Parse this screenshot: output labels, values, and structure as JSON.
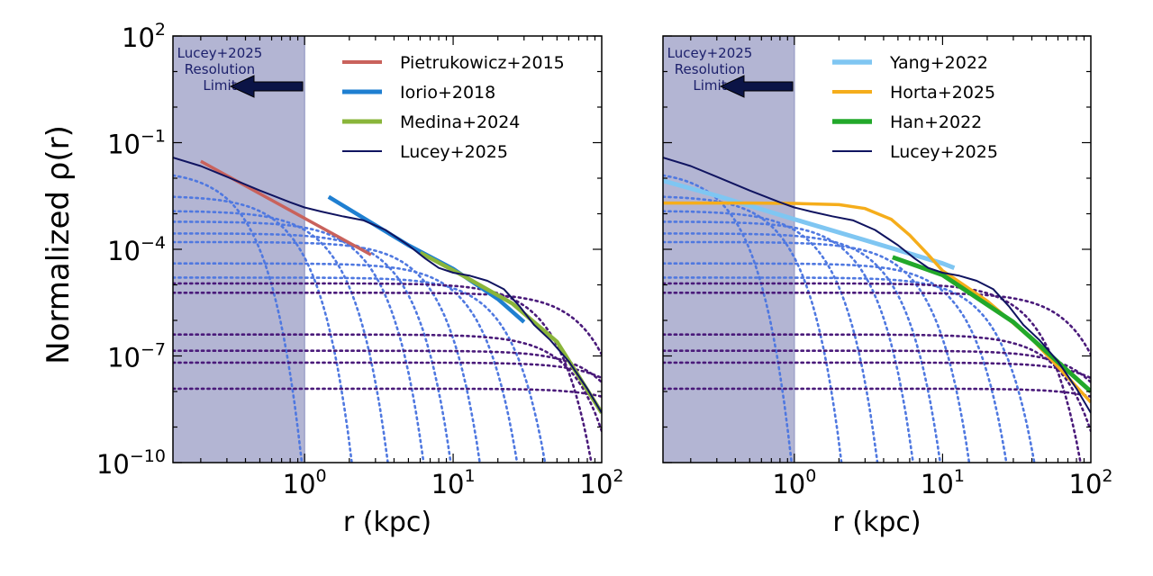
{
  "ylabel_common": "Normalized ρ(r)",
  "colors": {
    "shade": "#b3b5d3",
    "shade_edge": "#9fa3c9",
    "arrow_fill": "#0b1446",
    "text_navy": "#1b1f6b",
    "dotted_blue": "#4f78e0",
    "dotted_purple": "#4a1a7a",
    "lucey": "#101460"
  },
  "chart_data": [
    {
      "type": "line",
      "panel": "left",
      "xscale": "log",
      "yscale": "log",
      "xlim": [
        0.13,
        100
      ],
      "ylim": [
        1e-10,
        100
      ],
      "xlabel": "r (kpc)",
      "ylabel": "Normalized ρ(r)",
      "x_ticks": [
        {
          "value": 1,
          "base": "10",
          "exp": "0"
        },
        {
          "value": 10,
          "base": "10",
          "exp": "1"
        },
        {
          "value": 100,
          "base": "10",
          "exp": "2"
        }
      ],
      "y_ticks": [
        {
          "value": 100,
          "base": "10",
          "exp": "2"
        },
        {
          "value": 0.1,
          "base": "10",
          "exp": "−1"
        },
        {
          "value": 0.0001,
          "base": "10",
          "exp": "−4"
        },
        {
          "value": 1e-07,
          "base": "10",
          "exp": "−7"
        },
        {
          "value": 1e-10,
          "base": "10",
          "exp": "−10"
        }
      ],
      "shaded_region": {
        "x0": 0.13,
        "x1": 1.0,
        "label_lines": [
          "Lucey+2025",
          "Resolution",
          "Limit"
        ]
      },
      "legend_position": "top-right",
      "series": [
        {
          "name": "Pietrukowicz+2015",
          "color": "#c9625c",
          "width": 3.5,
          "points": [
            [
              0.2,
              0.03
            ],
            [
              2.8,
              7e-05
            ]
          ]
        },
        {
          "name": "Iorio+2018",
          "color": "#1f7fd1",
          "width": 4.5,
          "points": [
            [
              1.45,
              0.003
            ],
            [
              5,
              0.00013
            ],
            [
              10,
              2.8e-05
            ],
            [
              20,
              4e-06
            ],
            [
              30,
              9e-07
            ]
          ]
        },
        {
          "name": "Medina+2024",
          "color": "#8ab53a",
          "width": 4.5,
          "points": [
            [
              6,
              8e-05
            ],
            [
              12,
              1.7e-05
            ],
            [
              25,
              3e-06
            ],
            [
              50,
              2.5e-07
            ],
            [
              100,
              2.5e-09
            ]
          ]
        },
        {
          "name": "Lucey+2025",
          "color": "#101460",
          "width": 2,
          "points": [
            [
              0.13,
              0.038
            ],
            [
              0.2,
              0.022
            ],
            [
              0.3,
              0.011
            ],
            [
              0.5,
              0.0045
            ],
            [
              0.8,
              0.0021
            ],
            [
              1.0,
              0.0015
            ],
            [
              1.3,
              0.00115
            ],
            [
              1.8,
              0.00085
            ],
            [
              2.5,
              0.00065
            ],
            [
              3.5,
              0.00035
            ],
            [
              5,
              0.00013
            ],
            [
              6.5,
              5.5e-05
            ],
            [
              8,
              3e-05
            ],
            [
              10,
              2.2e-05
            ],
            [
              13,
              1.8e-05
            ],
            [
              17,
              1.3e-05
            ],
            [
              22,
              7.5e-06
            ],
            [
              28,
              2.5e-06
            ],
            [
              35,
              7.5e-07
            ],
            [
              45,
              2.8e-07
            ],
            [
              60,
              7e-08
            ],
            [
              80,
              1.2e-08
            ],
            [
              100,
              2.5e-09
            ]
          ]
        }
      ],
      "components": {
        "blue": [
          {
            "rho0": 0.017,
            "rc": 0.22
          },
          {
            "rho0": 0.0032,
            "rc": 0.5
          },
          {
            "rho0": 0.0012,
            "rc": 0.9
          },
          {
            "rho0": 0.0006,
            "rc": 1.6
          },
          {
            "rho0": 0.00028,
            "rc": 2.5
          },
          {
            "rho0": 0.00016,
            "rc": 4.0
          },
          {
            "rho0": 4e-05,
            "rc": 7.5
          },
          {
            "rho0": 1.6e-05,
            "rc": 12.0
          }
        ],
        "purple": [
          {
            "rho0": 1.1e-05,
            "rc": 25
          },
          {
            "rho0": 6e-06,
            "rc": 50
          },
          {
            "rho0": 4e-07,
            "rc": 40
          },
          {
            "rho0": 1.4e-07,
            "rc": 70
          },
          {
            "rho0": 6.5e-08,
            "rc": 100
          },
          {
            "rho0": 1.2e-08,
            "rc": 140
          }
        ]
      }
    },
    {
      "type": "line",
      "panel": "right",
      "xscale": "log",
      "yscale": "log",
      "xlim": [
        0.13,
        100
      ],
      "ylim": [
        1e-10,
        100
      ],
      "xlabel": "r (kpc)",
      "ylabel": "",
      "x_ticks": [
        {
          "value": 1,
          "base": "10",
          "exp": "0"
        },
        {
          "value": 10,
          "base": "10",
          "exp": "1"
        },
        {
          "value": 100,
          "base": "10",
          "exp": "2"
        }
      ],
      "y_ticks": [],
      "shaded_region": {
        "x0": 0.13,
        "x1": 1.0,
        "label_lines": [
          "Lucey+2025",
          "Resolution",
          "Limit"
        ]
      },
      "legend_position": "top-right",
      "series": [
        {
          "name": "Yang+2022",
          "color": "#7fc6f2",
          "width": 5,
          "points": [
            [
              0.13,
              0.0085
            ],
            [
              0.3,
              0.0032
            ],
            [
              1,
              0.0007
            ],
            [
              3,
              0.00018
            ],
            [
              10,
              4e-05
            ],
            [
              12,
              3e-05
            ]
          ]
        },
        {
          "name": "Horta+2025",
          "color": "#f5ad1b",
          "width": 3.5,
          "points": [
            [
              0.13,
              0.002
            ],
            [
              0.5,
              0.002
            ],
            [
              1,
              0.00195
            ],
            [
              2,
              0.0018
            ],
            [
              3,
              0.0014
            ],
            [
              4.5,
              0.0007
            ],
            [
              6,
              0.00025
            ],
            [
              8,
              7e-05
            ],
            [
              10,
              2.5e-05
            ],
            [
              12,
              1.5e-05
            ],
            [
              20,
              3.5e-06
            ],
            [
              40,
              3e-07
            ],
            [
              70,
              2.5e-08
            ],
            [
              100,
              5e-09
            ]
          ]
        },
        {
          "name": "Han+2022",
          "color": "#22a82a",
          "width": 5,
          "points": [
            [
              4.6,
              6e-05
            ],
            [
              10,
              1.9e-05
            ],
            [
              30,
              9e-07
            ],
            [
              100,
              1e-08
            ]
          ]
        },
        {
          "name": "Lucey+2025",
          "color": "#101460",
          "width": 2,
          "points": [
            [
              0.13,
              0.038
            ],
            [
              0.2,
              0.022
            ],
            [
              0.3,
              0.011
            ],
            [
              0.5,
              0.0045
            ],
            [
              0.8,
              0.0021
            ],
            [
              1.0,
              0.0015
            ],
            [
              1.3,
              0.00115
            ],
            [
              1.8,
              0.00085
            ],
            [
              2.5,
              0.00065
            ],
            [
              3.5,
              0.00035
            ],
            [
              5,
              0.00013
            ],
            [
              6.5,
              5.5e-05
            ],
            [
              8,
              3e-05
            ],
            [
              10,
              2.2e-05
            ],
            [
              13,
              1.8e-05
            ],
            [
              17,
              1.3e-05
            ],
            [
              22,
              7.5e-06
            ],
            [
              28,
              2.5e-06
            ],
            [
              35,
              7.5e-07
            ],
            [
              45,
              2.8e-07
            ],
            [
              60,
              7e-08
            ],
            [
              80,
              1.2e-08
            ],
            [
              100,
              2.5e-09
            ]
          ]
        }
      ],
      "components": {
        "blue": [
          {
            "rho0": 0.017,
            "rc": 0.22
          },
          {
            "rho0": 0.0032,
            "rc": 0.5
          },
          {
            "rho0": 0.0012,
            "rc": 0.9
          },
          {
            "rho0": 0.0006,
            "rc": 1.6
          },
          {
            "rho0": 0.00028,
            "rc": 2.5
          },
          {
            "rho0": 0.00016,
            "rc": 4.0
          },
          {
            "rho0": 4e-05,
            "rc": 7.5
          },
          {
            "rho0": 1.6e-05,
            "rc": 12.0
          }
        ],
        "purple": [
          {
            "rho0": 1.1e-05,
            "rc": 25
          },
          {
            "rho0": 6e-06,
            "rc": 50
          },
          {
            "rho0": 4e-07,
            "rc": 40
          },
          {
            "rho0": 1.4e-07,
            "rc": 70
          },
          {
            "rho0": 6.5e-08,
            "rc": 100
          },
          {
            "rho0": 1.2e-08,
            "rc": 140
          }
        ]
      }
    }
  ]
}
